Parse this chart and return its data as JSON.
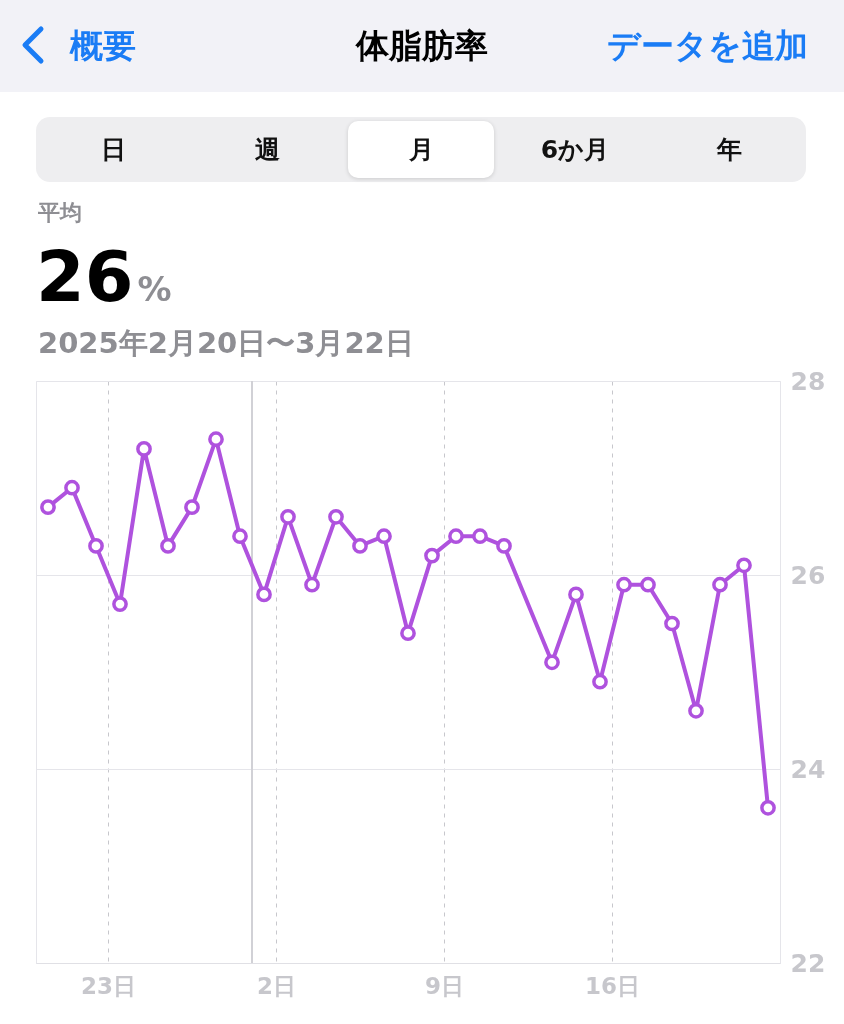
{
  "chart_data": {
    "type": "line",
    "title": "体脂肪率",
    "subtitle": "2025年2月20日〜3月22日",
    "annotations": [
      "概要",
      "データを追加",
      "日",
      "週",
      "月",
      "6か月",
      "年",
      "平均",
      "26%"
    ],
    "x": [
      "2025-02-20T12:00",
      "2025-02-21T12:00",
      "2025-02-22T12:00",
      "2025-02-23T12:00",
      "2025-02-24T12:00",
      "2025-02-25T12:00",
      "2025-02-26T12:00",
      "2025-02-27T12:00",
      "2025-02-28T12:00",
      "2025-03-01T12:00",
      "2025-03-02T12:00",
      "2025-03-03T12:00",
      "2025-03-04T12:00",
      "2025-03-05T12:00",
      "2025-03-06T12:00",
      "2025-03-07T12:00",
      "2025-03-08T12:00",
      "2025-03-09T12:00",
      "2025-03-10T12:00",
      "2025-03-11T12:00",
      "2025-03-13T12:00",
      "2025-03-14T12:00",
      "2025-03-15T12:00",
      "2025-03-16T12:00",
      "2025-03-17T12:00",
      "2025-03-18T12:00",
      "2025-03-19T12:00",
      "2025-03-20T12:00",
      "2025-03-21T12:00",
      "2025-03-22T12:00"
    ],
    "series": [
      {
        "color": "#af52de",
        "values": [
          26.7,
          26.9,
          26.3,
          25.7,
          27.3,
          26.3,
          26.7,
          27.4,
          26.4,
          25.8,
          26.6,
          25.9,
          26.6,
          26.3,
          26.4,
          25.4,
          26.2,
          26.4,
          26.4,
          26.3,
          25.1,
          25.8,
          24.9,
          25.9,
          25.9,
          25.5,
          24.6,
          25.9,
          26.1,
          23.6
        ]
      }
    ],
    "xlim": [
      "2025-02-20",
      "2025-03-23"
    ],
    "xticks": [
      {
        "value": "2025-02-23",
        "label": "23日"
      },
      {
        "value": "2025-03-02",
        "label": "2日"
      },
      {
        "value": "2025-03-09",
        "label": "9日"
      },
      {
        "value": "2025-03-16",
        "label": "16日"
      }
    ],
    "ylim": [
      22,
      28
    ],
    "yticks": [
      22,
      24,
      26,
      28
    ],
    "ref_lines": [
      {
        "axis": "x",
        "value": "2025-03-01",
        "color": "#d1d1d6"
      }
    ],
    "grid": true,
    "marker": "circle",
    "line_style": "solid"
  }
}
